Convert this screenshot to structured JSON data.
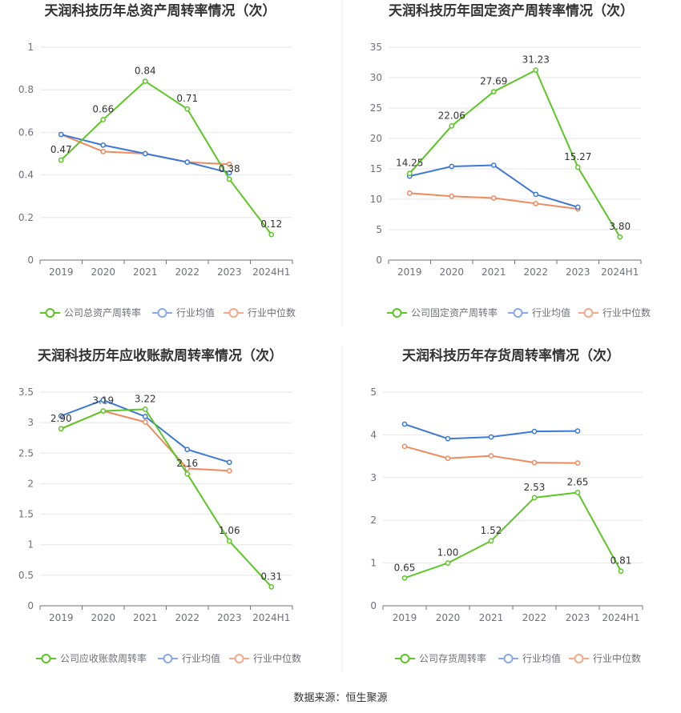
{
  "source": "数据来源：恒生聚源",
  "colors": {
    "company": "#5cc724",
    "avg": "#3c78d8",
    "median": "#ef8a5f",
    "avg_legend": "#8aa8e8",
    "median_legend": "#f4a98a"
  },
  "chart_data": [
    {
      "type": "line",
      "title": "天润科技历年总资产周转率情况（次）",
      "categories": [
        "2019",
        "2020",
        "2021",
        "2022",
        "2023",
        "2024H1"
      ],
      "ylim": [
        0,
        1
      ],
      "yticks": [
        "0",
        "0.2",
        "0.4",
        "0.6",
        "0.8",
        "1"
      ],
      "yticks_values": [
        0,
        0.2,
        0.4,
        0.6,
        0.8,
        1
      ],
      "grid": true,
      "legend": "bottom",
      "series": [
        {
          "name": "公司总资产周转率",
          "values": [
            0.47,
            0.66,
            0.84,
            0.71,
            0.38,
            0.12
          ],
          "labels": [
            "0.47",
            "0.66",
            "0.84",
            "0.71",
            "0.38",
            "0.12"
          ]
        },
        {
          "name": "行业均值",
          "values": [
            0.59,
            0.54,
            0.5,
            0.46,
            0.41,
            null
          ]
        },
        {
          "name": "行业中位数",
          "values": [
            0.59,
            0.51,
            0.5,
            0.46,
            0.45,
            null
          ]
        }
      ]
    },
    {
      "type": "line",
      "title": "天润科技历年固定资产周转率情况（次）",
      "categories": [
        "2019",
        "2020",
        "2021",
        "2022",
        "2023",
        "2024H1"
      ],
      "ylim": [
        0,
        35
      ],
      "yticks": [
        "0",
        "5",
        "10",
        "15",
        "20",
        "25",
        "30",
        "35"
      ],
      "yticks_values": [
        0,
        5,
        10,
        15,
        20,
        25,
        30,
        35
      ],
      "grid": true,
      "legend": "bottom",
      "series": [
        {
          "name": "公司固定资产周转率",
          "values": [
            14.25,
            22.06,
            27.69,
            31.23,
            15.27,
            3.8
          ],
          "labels": [
            "14.25",
            "22.06",
            "27.69",
            "31.23",
            "15.27",
            "3.80"
          ]
        },
        {
          "name": "行业均值",
          "values": [
            13.8,
            15.4,
            15.6,
            10.8,
            8.7,
            null
          ]
        },
        {
          "name": "行业中位数",
          "values": [
            11.0,
            10.5,
            10.2,
            9.3,
            8.4,
            null
          ]
        }
      ]
    },
    {
      "type": "line",
      "title": "天润科技历年应收账款周转率情况（次）",
      "categories": [
        "2019",
        "2020",
        "2021",
        "2022",
        "2023",
        "2024H1"
      ],
      "ylim": [
        0,
        3.5
      ],
      "yticks": [
        "0",
        "0.5",
        "1",
        "1.5",
        "2",
        "2.5",
        "3",
        "3.5"
      ],
      "yticks_values": [
        0,
        0.5,
        1,
        1.5,
        2,
        2.5,
        3,
        3.5
      ],
      "grid": true,
      "legend": "bottom",
      "series": [
        {
          "name": "公司应收账款周转率",
          "values": [
            2.9,
            3.19,
            3.22,
            2.16,
            1.06,
            0.31
          ],
          "labels": [
            "2.90",
            "3.19",
            "3.22",
            "2.16",
            "1.06",
            "0.31"
          ]
        },
        {
          "name": "行业均值",
          "values": [
            3.11,
            3.37,
            3.1,
            2.56,
            2.35,
            null
          ]
        },
        {
          "name": "行业中位数",
          "values": [
            2.9,
            3.19,
            3.01,
            2.25,
            2.21,
            null
          ]
        }
      ]
    },
    {
      "type": "line",
      "title": "天润科技历年存货周转率情况（次）",
      "categories": [
        "2019",
        "2020",
        "2021",
        "2022",
        "2023",
        "2024H1"
      ],
      "ylim": [
        0,
        5
      ],
      "yticks": [
        "0",
        "1",
        "2",
        "3",
        "4",
        "5"
      ],
      "yticks_values": [
        0,
        1,
        2,
        3,
        4,
        5
      ],
      "grid": true,
      "legend": "bottom",
      "series": [
        {
          "name": "公司存货周转率",
          "values": [
            0.65,
            1.0,
            1.52,
            2.53,
            2.65,
            0.81
          ],
          "labels": [
            "0.65",
            "1.00",
            "1.52",
            "2.53",
            "2.65",
            "0.81"
          ]
        },
        {
          "name": "行业均值",
          "values": [
            4.25,
            3.91,
            3.95,
            4.08,
            4.09,
            null
          ]
        },
        {
          "name": "行业中位数",
          "values": [
            3.73,
            3.45,
            3.51,
            3.35,
            3.34,
            null
          ]
        }
      ]
    }
  ]
}
